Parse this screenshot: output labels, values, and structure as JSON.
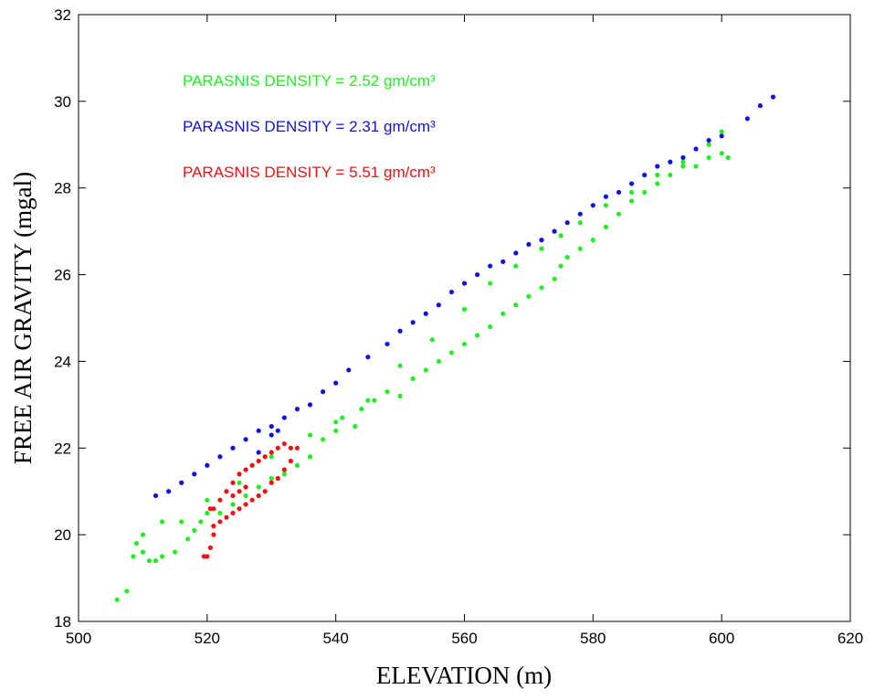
{
  "chart_data": {
    "type": "scatter",
    "xlabel": "ELEVATION (m)",
    "ylabel": "FREE AIR GRAVITY (mgal)",
    "xlim": [
      500,
      620
    ],
    "xticks": [
      500,
      520,
      540,
      560,
      580,
      600,
      620
    ],
    "ylim": [
      18,
      32
    ],
    "yticks": [
      18,
      20,
      22,
      24,
      26,
      28,
      30,
      32
    ],
    "grid": false,
    "series": [
      {
        "name": "PARASNIS DENSITY  = 2.52 gm/cm³",
        "color": "#22ee22",
        "x": [
          506,
          507.5,
          508.5,
          509,
          510,
          511,
          512,
          513,
          515,
          517,
          518,
          519,
          520,
          521,
          522,
          524,
          526,
          528,
          530,
          532,
          534,
          536,
          538,
          540,
          541,
          543,
          544,
          546,
          548,
          550,
          552,
          554,
          556,
          558,
          560,
          562,
          564,
          566,
          568,
          570,
          572,
          574,
          575,
          576,
          578,
          580,
          582,
          584,
          586,
          588,
          590,
          592,
          594,
          596,
          598,
          600,
          601,
          510,
          513,
          516,
          520,
          525,
          530,
          536,
          540,
          545,
          550,
          555,
          560,
          564,
          568,
          572,
          575,
          578,
          582,
          586,
          590,
          594,
          598,
          600
        ],
        "values": [
          18.5,
          18.7,
          19.5,
          19.8,
          19.6,
          19.4,
          19.4,
          19.5,
          19.6,
          19.9,
          20.1,
          20.3,
          20.5,
          20.2,
          20.5,
          20.7,
          20.9,
          21.1,
          21.3,
          21.4,
          21.6,
          21.8,
          22.2,
          22.4,
          22.7,
          22.5,
          22.9,
          23.1,
          23.3,
          23.2,
          23.6,
          23.8,
          24.0,
          24.2,
          24.4,
          24.6,
          24.8,
          25.1,
          25.3,
          25.5,
          25.7,
          25.9,
          26.2,
          26.4,
          26.6,
          26.8,
          27.1,
          27.4,
          27.7,
          27.9,
          28.1,
          28.3,
          28.5,
          28.5,
          28.7,
          28.8,
          28.7,
          20.0,
          20.3,
          20.3,
          20.8,
          21.2,
          21.8,
          22.3,
          22.6,
          23.1,
          23.9,
          24.5,
          25.2,
          25.8,
          26.2,
          26.6,
          26.9,
          27.2,
          27.6,
          27.9,
          28.3,
          28.6,
          29.0,
          29.3
        ]
      },
      {
        "name": "PARASNIS DENSITY  = 2.31 gm/cm³",
        "color": "#1111dd",
        "x": [
          512,
          514,
          516,
          518,
          520,
          522,
          524,
          526,
          528,
          530,
          532,
          534,
          536,
          538,
          540,
          542,
          545,
          548,
          550,
          552,
          554,
          556,
          558,
          560,
          562,
          564,
          566,
          568,
          570,
          572,
          574,
          576,
          578,
          580,
          582,
          584,
          586,
          588,
          590,
          592,
          594,
          596,
          598,
          600,
          604,
          606,
          608,
          528,
          530,
          531
        ],
        "values": [
          20.9,
          21.0,
          21.2,
          21.4,
          21.6,
          21.8,
          22.0,
          22.2,
          22.4,
          22.5,
          22.7,
          22.9,
          23.0,
          23.3,
          23.5,
          23.8,
          24.1,
          24.4,
          24.7,
          24.9,
          25.1,
          25.3,
          25.6,
          25.8,
          26.0,
          26.2,
          26.3,
          26.5,
          26.7,
          26.8,
          27.0,
          27.2,
          27.4,
          27.6,
          27.8,
          27.9,
          28.1,
          28.3,
          28.5,
          28.6,
          28.7,
          28.9,
          29.1,
          29.2,
          29.6,
          29.9,
          30.1,
          21.9,
          22.3,
          22.4
        ]
      },
      {
        "name": "PARASNIS DENSITY  = 5.51 gm/cm³",
        "color": "#ee1111",
        "x": [
          519.5,
          520,
          520.5,
          521,
          521,
          522,
          523,
          524,
          525,
          526,
          527,
          528,
          529,
          530,
          531,
          532,
          533,
          534,
          533,
          532,
          531,
          530,
          529,
          528,
          527,
          526,
          525,
          524,
          523,
          522,
          521,
          520.5,
          525,
          526,
          524
        ],
        "values": [
          19.5,
          19.5,
          19.7,
          20.0,
          20.6,
          20.8,
          21.0,
          21.2,
          21.4,
          21.5,
          21.6,
          21.7,
          21.8,
          21.9,
          22.0,
          22.1,
          22.0,
          22.0,
          21.7,
          21.5,
          21.3,
          21.2,
          21.0,
          20.9,
          20.8,
          20.7,
          20.6,
          20.5,
          20.4,
          20.3,
          20.2,
          20.6,
          21.0,
          21.1,
          20.9
        ]
      }
    ]
  }
}
